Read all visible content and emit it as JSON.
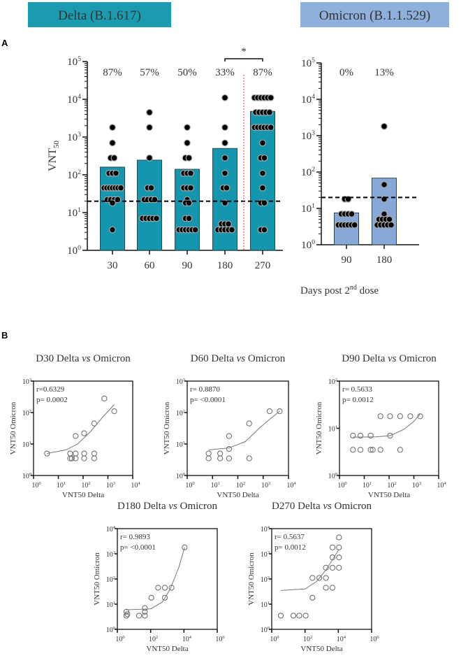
{
  "panel_labels": [
    "A",
    "B"
  ],
  "shared_xlabel_a": {
    "pre": "Days post 2",
    "sup": "nd",
    "post": " dose"
  },
  "chart_data": [
    {
      "type": "bar",
      "id": "delta",
      "title": "Delta (B.1.617)",
      "title_color": "#1a9bb0",
      "bar_color": "#1396ae",
      "ylabel": "VNT",
      "ylabel_sub": "50",
      "ylim_log10": [
        0,
        5
      ],
      "lod": 20,
      "categories": [
        "30",
        "60",
        "90",
        "180",
        "270"
      ],
      "values": [
        160,
        245,
        140,
        500,
        4800
      ],
      "annotations": [
        "87%",
        "57%",
        "50%",
        "33%",
        "87%"
      ],
      "significance": {
        "between": [
          "180",
          "270"
        ],
        "label": "*"
      },
      "points": [
        [
          1800,
          700,
          280,
          280,
          110,
          110,
          110,
          45,
          45,
          45,
          45,
          45,
          45,
          45,
          22,
          22,
          22,
          22,
          18,
          3.5
        ],
        [
          4500,
          1800,
          280,
          45,
          45,
          22,
          22,
          22,
          22,
          7,
          7,
          7,
          7,
          7
        ],
        [
          1800,
          700,
          280,
          280,
          110,
          110,
          110,
          45,
          45,
          45,
          22,
          18,
          18,
          7,
          7,
          3.5,
          3.5,
          3.5,
          3.5,
          3.5,
          3.5
        ],
        [
          11000,
          1800,
          700,
          280,
          110,
          45,
          45,
          18,
          5,
          5,
          5,
          3.5,
          3.5,
          3.5,
          3.5,
          3.5
        ],
        [
          11000,
          11000,
          11000,
          11000,
          11000,
          11000,
          4500,
          4500,
          4500,
          4500,
          4500,
          1800,
          1800,
          1800,
          1800,
          1800,
          1800,
          700,
          280,
          280,
          110,
          45,
          18,
          18,
          3.5,
          3.5
        ]
      ]
    },
    {
      "type": "bar",
      "id": "omicron",
      "title": "Omicron (B.1.1.529)",
      "title_color": "#8fb0dd",
      "bar_color": "#88a9d8",
      "ylim_log10": [
        0,
        5
      ],
      "lod": 20,
      "categories": [
        "90",
        "180"
      ],
      "values": [
        7.5,
        68
      ],
      "annotations": [
        "0%",
        "13%"
      ],
      "points": [
        [
          18,
          18,
          7,
          7,
          7,
          7,
          3.5,
          3.5,
          3.5,
          3.5,
          3.5,
          3.5
        ],
        [
          1800,
          45,
          18,
          7,
          5,
          5,
          5,
          5,
          3.5,
          3.5,
          3.5,
          3.5,
          3.5
        ]
      ]
    },
    {
      "type": "scatter",
      "id": "d30",
      "title": "D30 Delta vs Omicron",
      "title_pre": "D30 Delta ",
      "title_it": "vs",
      "title_post": " Omicron",
      "xlabel": "VNT50 Delta",
      "ylabel": "VNT50 Omicron",
      "xlim_log10": [
        0,
        4
      ],
      "ylim_log10": [
        0,
        3
      ],
      "r": "r=0.6329",
      "p": "p= 0.0002",
      "points": [
        [
          3.5,
          5
        ],
        [
          30,
          3.5
        ],
        [
          35,
          3.5
        ],
        [
          30,
          5
        ],
        [
          50,
          3.5
        ],
        [
          50,
          5
        ],
        [
          50,
          18
        ],
        [
          110,
          3.5
        ],
        [
          110,
          5
        ],
        [
          110,
          22
        ],
        [
          280,
          3.5
        ],
        [
          280,
          5
        ],
        [
          280,
          45
        ],
        [
          720,
          280
        ],
        [
          1800,
          110
        ]
      ],
      "fit": [
        [
          3.5,
          5
        ],
        [
          20,
          6.5
        ],
        [
          60,
          10
        ],
        [
          200,
          25
        ],
        [
          600,
          70
        ],
        [
          1800,
          180
        ]
      ]
    },
    {
      "type": "scatter",
      "id": "d60",
      "title": "D60 Delta vs Omicron",
      "title_pre": "D60 Delta ",
      "title_it": "vs",
      "title_post": " Omicron",
      "xlabel": "VNT50 Delta",
      "ylabel": "VNT50 Omicron",
      "xlim_log10": [
        0,
        4
      ],
      "ylim_log10": [
        0,
        3
      ],
      "r": "r= 0.8870",
      "p": "p= <0.0001",
      "points": [
        [
          7,
          5
        ],
        [
          7,
          3.5
        ],
        [
          20,
          5
        ],
        [
          20,
          3.5
        ],
        [
          45,
          3.5
        ],
        [
          45,
          7
        ],
        [
          45,
          18
        ],
        [
          280,
          45
        ],
        [
          280,
          3.5
        ],
        [
          1800,
          110
        ],
        [
          4500,
          110
        ]
      ],
      "fit": [
        [
          7,
          6.5
        ],
        [
          45,
          7.5
        ],
        [
          200,
          12
        ],
        [
          800,
          35
        ],
        [
          2000,
          65
        ],
        [
          4500,
          110
        ]
      ]
    },
    {
      "type": "scatter",
      "id": "d90",
      "title": "D90 Delta vs Omicron",
      "title_pre": "D90 Delta ",
      "title_it": "vs",
      "title_post": " Omicron",
      "xlabel": "VNT50 Delta",
      "ylabel": "VNT50 Omicron",
      "xlim_log10": [
        0,
        4
      ],
      "ylim_log10": [
        0,
        2
      ],
      "r": "r= 0.5633",
      "p": "p= 0.0012",
      "points": [
        [
          3.5,
          7
        ],
        [
          3.5,
          3.5
        ],
        [
          7,
          7
        ],
        [
          7,
          3.5
        ],
        [
          18,
          7
        ],
        [
          18,
          3.5
        ],
        [
          22,
          3.5
        ],
        [
          45,
          18
        ],
        [
          45,
          3.5
        ],
        [
          110,
          7
        ],
        [
          110,
          18
        ],
        [
          280,
          18
        ],
        [
          280,
          3.5
        ],
        [
          720,
          18
        ],
        [
          1800,
          18
        ]
      ],
      "fit": [
        [
          3.5,
          6.5
        ],
        [
          30,
          6.6
        ],
        [
          110,
          7
        ],
        [
          400,
          9.5
        ],
        [
          1000,
          14
        ],
        [
          1800,
          20
        ]
      ]
    },
    {
      "type": "scatter",
      "id": "d180",
      "title": "D180 Delta vs Omicron",
      "title_pre": "D180 Delta ",
      "title_it": "vs",
      "title_post": " Omicron",
      "xlabel": "VNT50 Delta",
      "ylabel": "VNT50 Omicron",
      "xlim_log10": [
        0,
        6
      ],
      "ylim_log10": [
        0,
        4
      ],
      "r": "r= 0.9893",
      "p": "p= <0.0001",
      "points": [
        [
          3.5,
          3.5
        ],
        [
          3.5,
          5
        ],
        [
          4,
          4
        ],
        [
          20,
          3.5
        ],
        [
          45,
          3.5
        ],
        [
          45,
          5
        ],
        [
          45,
          7
        ],
        [
          110,
          18
        ],
        [
          280,
          45
        ],
        [
          720,
          45
        ],
        [
          720,
          18
        ],
        [
          1800,
          45
        ],
        [
          11000,
          1800
        ]
      ],
      "fit": [
        [
          3.5,
          6
        ],
        [
          100,
          6.5
        ],
        [
          500,
          12
        ],
        [
          1500,
          40
        ],
        [
          5000,
          300
        ],
        [
          11000,
          1800
        ]
      ]
    },
    {
      "type": "scatter",
      "id": "d270",
      "title": "D270 Delta vs Omicron",
      "title_pre": "D270 Delta ",
      "title_it": "vs",
      "title_post": " Omicron",
      "xlabel": "VNT50 Delta",
      "ylabel": "VNT50 Omicron",
      "xlim_log10": [
        0,
        6
      ],
      "ylim_log10": [
        0,
        4
      ],
      "r": "r= 0.5637",
      "p": "p= 0.0012",
      "points": [
        [
          3.5,
          3.5
        ],
        [
          20,
          3.5
        ],
        [
          45,
          3.5
        ],
        [
          110,
          3.5
        ],
        [
          280,
          18
        ],
        [
          280,
          110
        ],
        [
          720,
          110
        ],
        [
          1800,
          280
        ],
        [
          1800,
          110
        ],
        [
          1800,
          45
        ],
        [
          4500,
          1800
        ],
        [
          4500,
          720
        ],
        [
          4500,
          280
        ],
        [
          4500,
          45
        ],
        [
          11000,
          4500
        ],
        [
          11000,
          1800
        ],
        [
          11000,
          720
        ],
        [
          11000,
          280
        ]
      ],
      "fit": [
        [
          3.5,
          35
        ],
        [
          100,
          40
        ],
        [
          500,
          80
        ],
        [
          2000,
          250
        ],
        [
          6000,
          800
        ],
        [
          11000,
          1500
        ]
      ]
    }
  ]
}
